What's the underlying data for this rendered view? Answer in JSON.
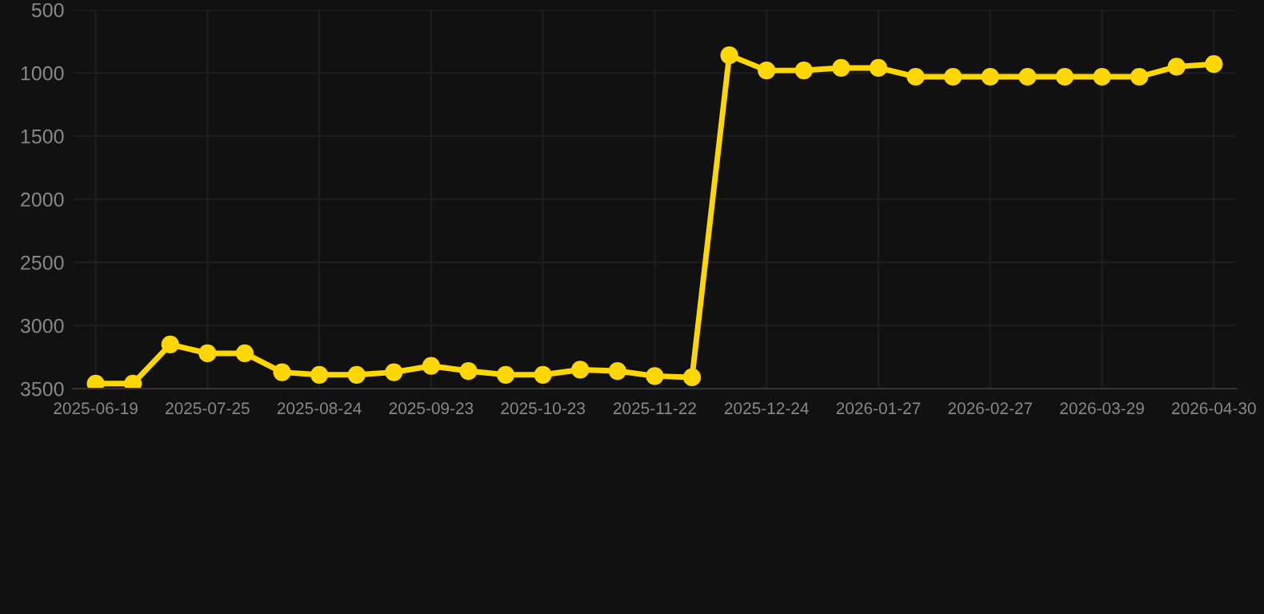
{
  "chart_data": {
    "type": "line",
    "categories": [
      "2025-06-19",
      null,
      null,
      "2025-07-25",
      null,
      null,
      "2025-08-24",
      null,
      null,
      "2025-09-23",
      null,
      null,
      "2025-10-23",
      null,
      null,
      "2025-11-22",
      null,
      null,
      "2025-12-24",
      null,
      null,
      "2026-01-27",
      null,
      null,
      "2026-02-27",
      null,
      null,
      "2026-03-29",
      null,
      null,
      "2026-04-30"
    ],
    "series": [
      {
        "color": "#ffd700",
        "values": [
          3460,
          3460,
          3150,
          3220,
          3220,
          3370,
          3390,
          3390,
          3370,
          3320,
          3360,
          3390,
          3390,
          3350,
          3360,
          3400,
          3410,
          860,
          980,
          980,
          960,
          960,
          1030,
          1030,
          1030,
          1030,
          1030,
          1030,
          1030,
          950,
          930
        ]
      }
    ],
    "ylim": [
      3500,
      500
    ],
    "yticks": [
      500,
      1000,
      1500,
      2000,
      2500,
      3000,
      3500
    ],
    "grid": true,
    "marker": "circle",
    "line_style": "solid"
  }
}
